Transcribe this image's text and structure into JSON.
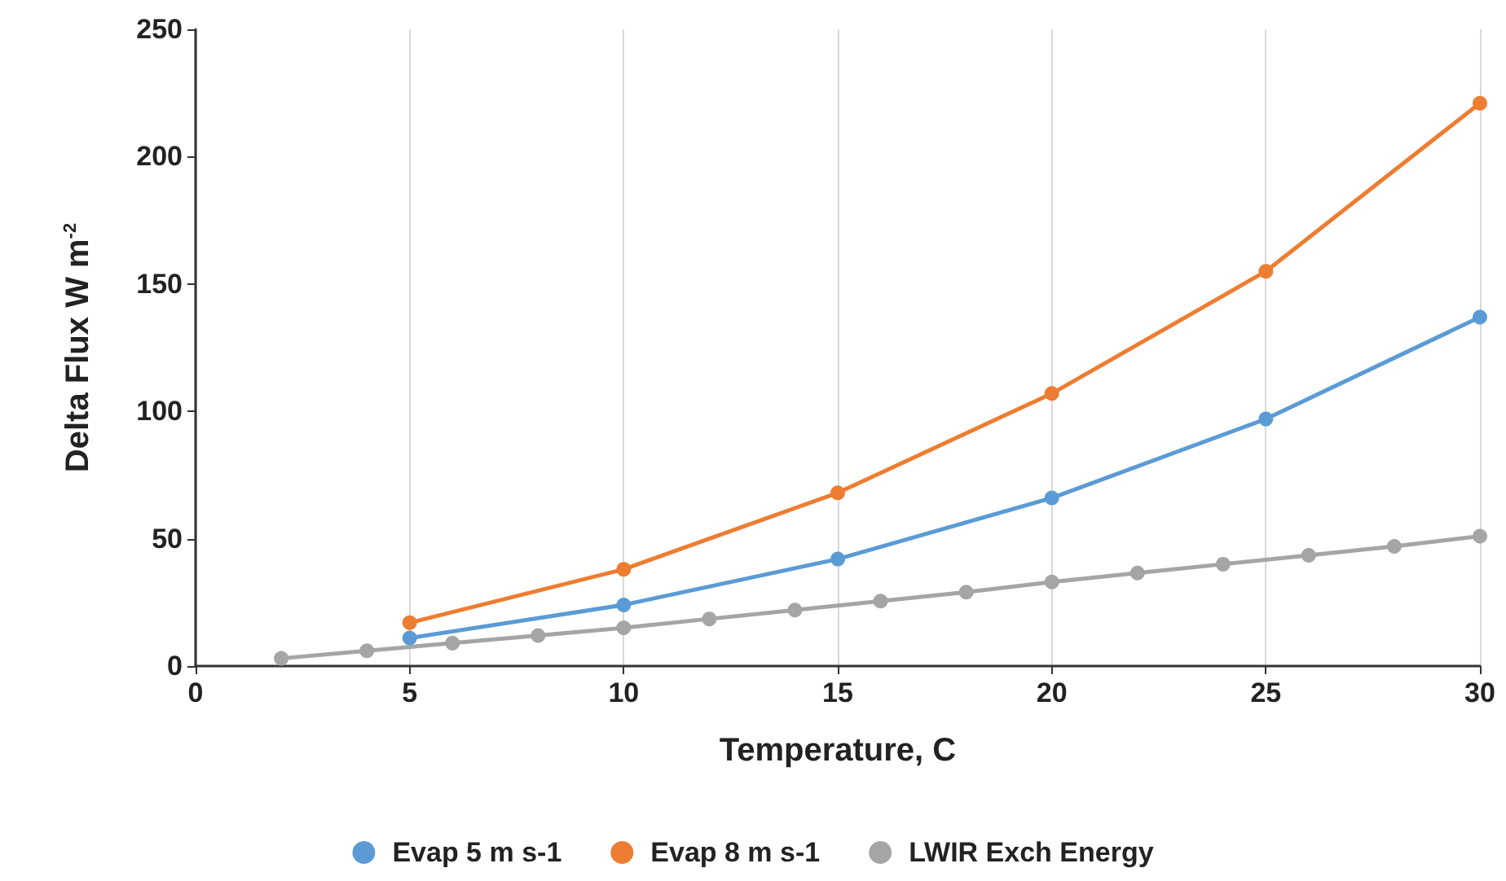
{
  "chart_data": {
    "type": "line",
    "xlabel": "Temperature, C",
    "ylabel": "Delta Flux W m$^{-2}$",
    "xlim": [
      0,
      30
    ],
    "xticks": [
      0,
      5,
      10,
      15,
      20,
      25,
      30
    ],
    "ylim": [
      0,
      250
    ],
    "yticks": [
      0,
      50,
      100,
      150,
      200,
      250
    ],
    "grid": "x",
    "legend": "bottom",
    "marker": "circle",
    "line_style": "solid",
    "series": [
      {
        "name": "Evap 5 m s-1",
        "color": "#5b9bd5",
        "x": [
          5,
          10,
          15,
          20,
          25,
          30
        ],
        "values": [
          11,
          24,
          42,
          66,
          97,
          137
        ]
      },
      {
        "name": "Evap 8 m s-1",
        "color": "#ed7d31",
        "x": [
          5,
          10,
          15,
          20,
          25,
          30
        ],
        "values": [
          17,
          38,
          68,
          107,
          155,
          221
        ]
      },
      {
        "name": "LWIR Exch Energy",
        "color": "#a5a5a5",
        "x": [
          2,
          4,
          6,
          8,
          10,
          12,
          14,
          16,
          18,
          20,
          22,
          24,
          26,
          28,
          30
        ],
        "values": [
          3,
          6,
          9,
          12,
          15,
          18.5,
          22,
          25.5,
          29,
          33,
          36.5,
          40,
          43.5,
          47,
          51
        ]
      }
    ]
  }
}
